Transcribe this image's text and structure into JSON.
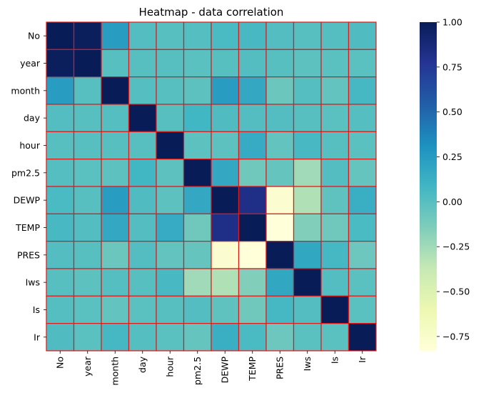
{
  "chart_data": {
    "type": "heatmap",
    "title": "Heatmap - data correlation",
    "variables": [
      "No",
      "year",
      "month",
      "day",
      "hour",
      "pm2.5",
      "DEWP",
      "TEMP",
      "PRES",
      "Iws",
      "Is",
      "Ir"
    ],
    "matrix": [
      [
        1.0,
        0.98,
        0.24,
        0.02,
        0.0,
        0.01,
        0.05,
        0.06,
        0.02,
        0.0,
        0.01,
        0.03
      ],
      [
        0.98,
        1.0,
        0.0,
        0.0,
        0.0,
        -0.01,
        0.0,
        0.02,
        0.0,
        -0.02,
        -0.01,
        -0.01
      ],
      [
        0.24,
        0.0,
        1.0,
        0.01,
        0.0,
        -0.02,
        0.24,
        0.17,
        -0.07,
        0.01,
        -0.04,
        0.07
      ],
      [
        0.02,
        0.0,
        0.01,
        1.0,
        0.0,
        0.08,
        0.03,
        0.02,
        0.02,
        0.0,
        -0.01,
        0.01
      ],
      [
        0.0,
        0.0,
        0.0,
        0.0,
        1.0,
        -0.02,
        -0.02,
        0.15,
        -0.04,
        0.06,
        0.0,
        -0.01
      ],
      [
        0.01,
        -0.01,
        -0.02,
        0.08,
        -0.02,
        1.0,
        0.17,
        -0.09,
        -0.05,
        -0.25,
        0.02,
        -0.05
      ],
      [
        0.05,
        0.0,
        0.24,
        0.03,
        -0.02,
        0.17,
        1.0,
        0.82,
        -0.78,
        -0.3,
        -0.03,
        0.13
      ],
      [
        0.06,
        0.02,
        0.17,
        0.02,
        0.15,
        -0.09,
        0.82,
        1.0,
        -0.83,
        -0.15,
        -0.09,
        0.05
      ],
      [
        0.02,
        0.0,
        -0.07,
        0.02,
        -0.04,
        -0.05,
        -0.78,
        -0.83,
        1.0,
        0.18,
        0.07,
        -0.08
      ],
      [
        0.0,
        -0.02,
        0.01,
        0.0,
        0.06,
        -0.25,
        -0.3,
        -0.15,
        0.18,
        1.0,
        0.02,
        -0.01
      ],
      [
        0.01,
        -0.01,
        -0.04,
        -0.01,
        0.0,
        0.02,
        -0.03,
        -0.09,
        0.07,
        0.02,
        1.0,
        -0.01
      ],
      [
        0.03,
        -0.01,
        0.07,
        0.01,
        -0.01,
        -0.05,
        0.13,
        0.05,
        -0.08,
        -0.01,
        -0.01,
        1.0
      ]
    ],
    "colorbar": {
      "min": -0.83,
      "max": 1.0,
      "ticks": [
        1.0,
        0.75,
        0.5,
        0.25,
        0.0,
        -0.25,
        -0.5,
        -0.75
      ],
      "tick_labels": [
        "1.00",
        "0.75",
        "0.50",
        "0.25",
        "0.00",
        "−0.25",
        "−0.50",
        "−0.75"
      ]
    },
    "colormap": "YlGnBu",
    "colormap_stops": [
      "#ffffd9",
      "#edf8b1",
      "#c7e9b4",
      "#7fcdbb",
      "#41b6c4",
      "#1d91c0",
      "#225ea8",
      "#253494",
      "#081d58"
    ],
    "cell_border_color": "#e01818",
    "grid": false
  }
}
